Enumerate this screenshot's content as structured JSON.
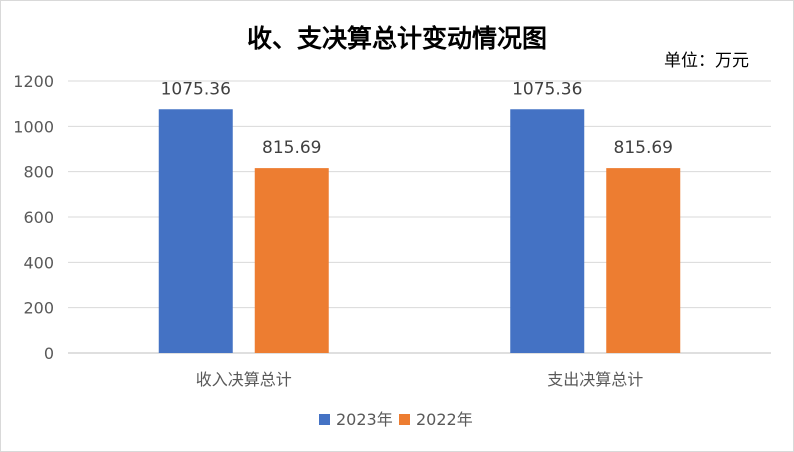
{
  "chart_data": {
    "type": "bar",
    "title": "收、支决算总计变动情况图",
    "unit_label": "单位：万元",
    "categories": [
      "收入决算总计",
      "支出决算总计"
    ],
    "series": [
      {
        "name": "2023年",
        "color": "#4472c4",
        "values": [
          1075.36,
          1075.36
        ]
      },
      {
        "name": "2022年",
        "color": "#ed7d31",
        "values": [
          815.69,
          815.69
        ]
      }
    ],
    "y_ticks": [
      "0",
      "200",
      "400",
      "600",
      "800",
      "1000",
      "1200"
    ],
    "ylim": [
      0,
      1200
    ],
    "grid": true,
    "legend_position": "bottom"
  }
}
